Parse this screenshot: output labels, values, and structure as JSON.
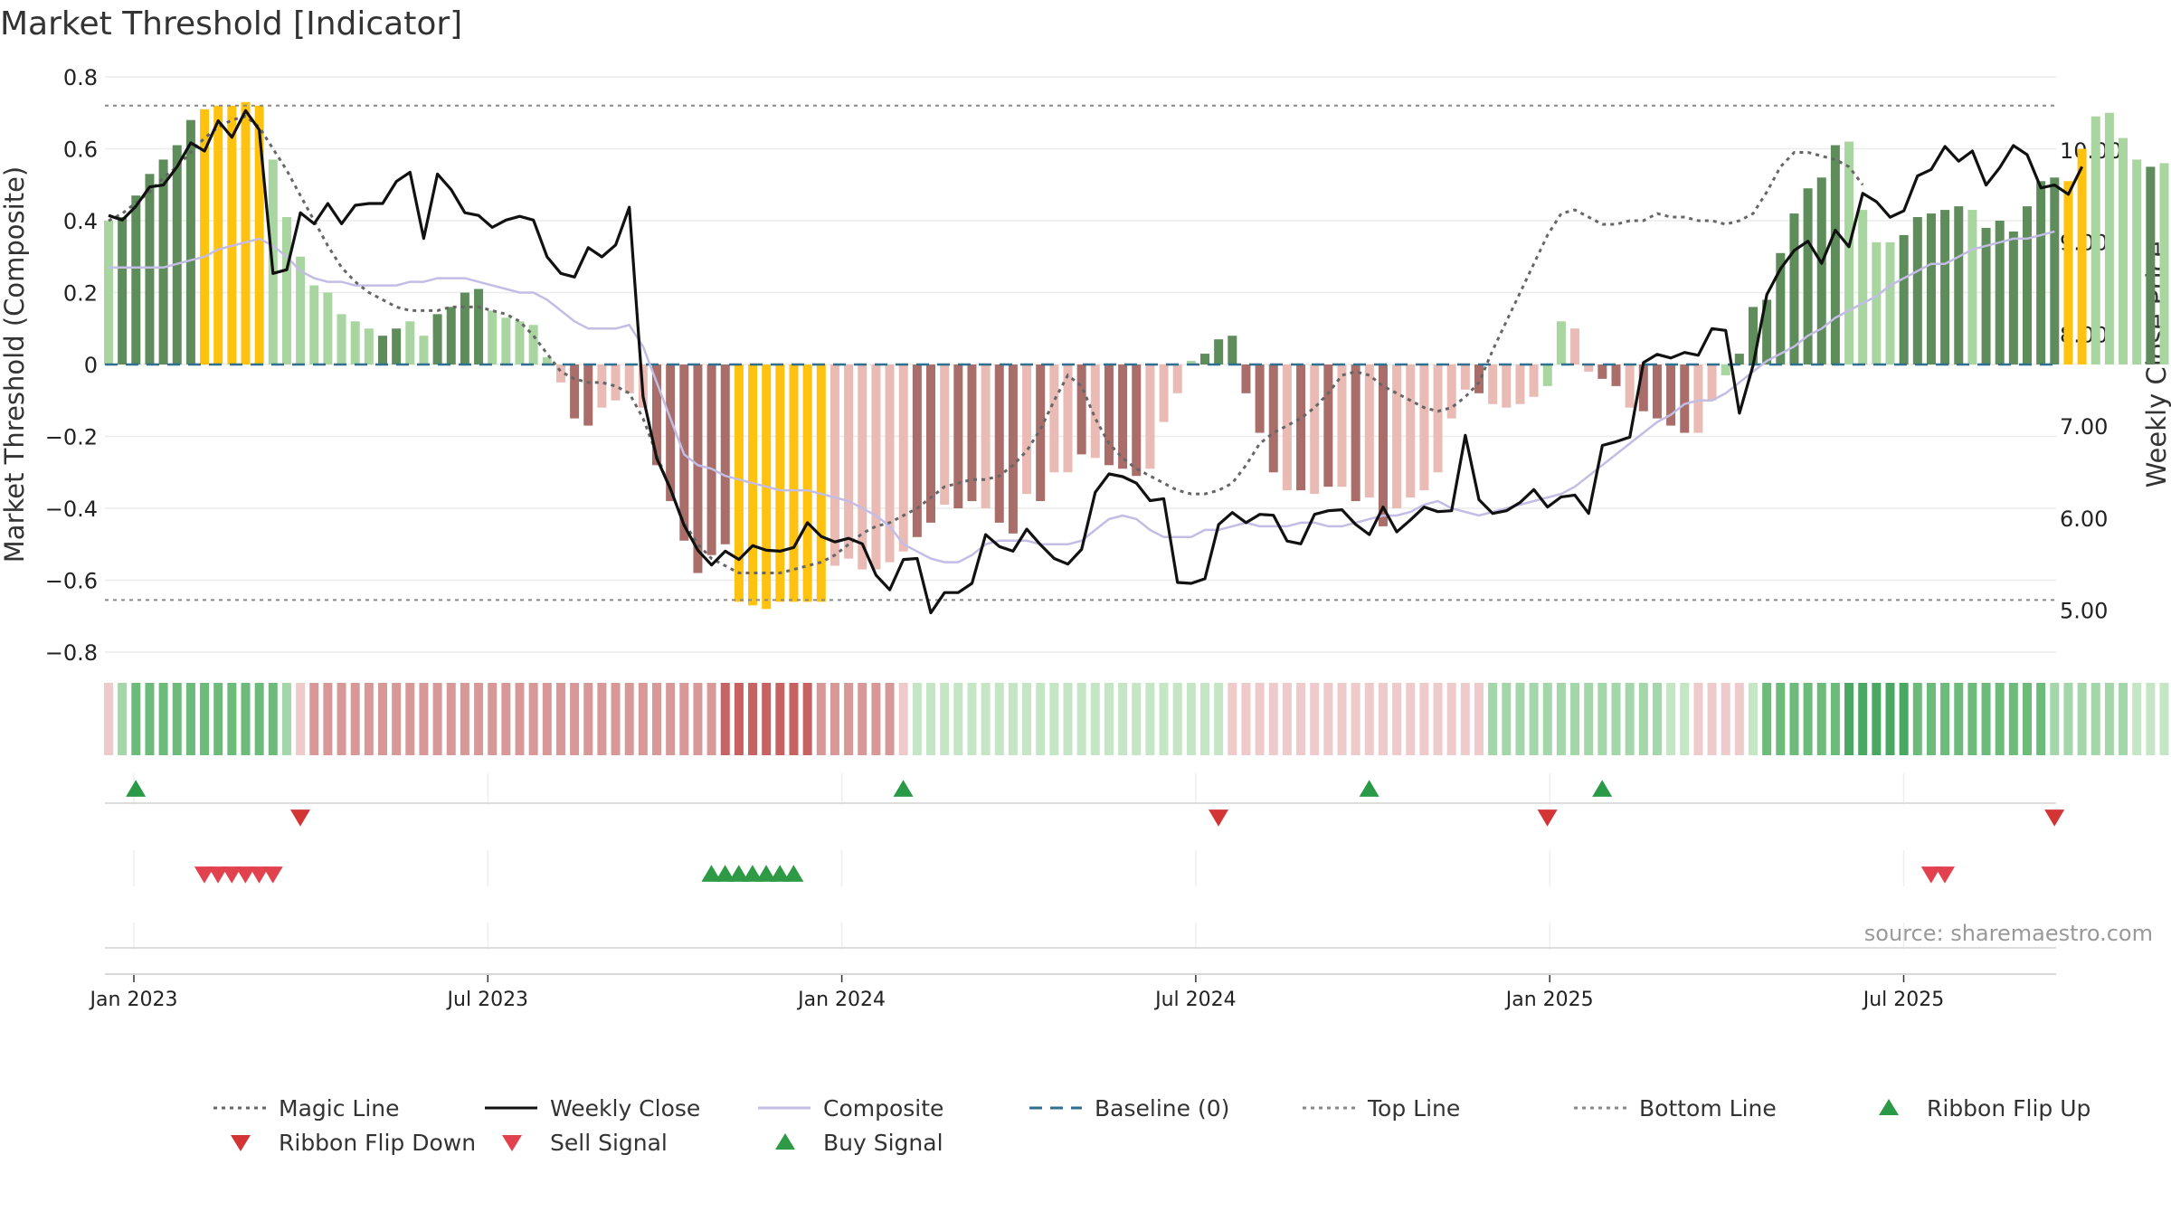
{
  "chart_data": {
    "type": "bar",
    "title": "Market Threshold [Indicator]",
    "ylabel": "Market Threshold (Composite)",
    "y2label": "Weekly Close Price",
    "ylim": [
      -0.8,
      0.8
    ],
    "y2lim": [
      4.55,
      10.7
    ],
    "yticks": [
      "0.8",
      "0.6",
      "0.4",
      "0.2",
      "0",
      "−0.2",
      "−0.4",
      "−0.6",
      "−0.8"
    ],
    "y2ticks": [
      "10.00",
      "9.00",
      "8.00",
      "7.00",
      "6.00",
      "5.00"
    ],
    "xticks": [
      {
        "label": "Jan 2023",
        "week": 3
      },
      {
        "label": "Jul 2023",
        "week": 29
      },
      {
        "label": "Jan 2024",
        "week": 55
      },
      {
        "label": "Jul 2024",
        "week": 81
      },
      {
        "label": "Jan 2025",
        "week": 107
      },
      {
        "label": "Jul 2025",
        "week": 133
      }
    ],
    "top_line": 0.72,
    "bottom_line": -0.655,
    "source": "source: sharemaestro.com",
    "colors": {
      "dark_green": "#5e8c5a",
      "light_green": "#a8d5a0",
      "gold": "#ffc20e",
      "dark_red": "#a96e6a",
      "light_red": "#eabab4",
      "black": "#111111",
      "composite": "#c3bde6",
      "magic": "#666666",
      "baseline": "#2f6f8f",
      "flip_up": "#2a9a47",
      "flip_down": "#d33535",
      "sell": "#e2414e",
      "buy": "#2f9a46"
    },
    "threshold_bars": [
      0.4,
      0.41,
      0.47,
      0.53,
      0.57,
      0.61,
      0.68,
      0.71,
      0.72,
      0.72,
      0.73,
      0.72,
      0.57,
      0.41,
      0.3,
      0.22,
      0.2,
      0.14,
      0.12,
      0.1,
      0.08,
      0.1,
      0.12,
      0.08,
      0.14,
      0.16,
      0.2,
      0.21,
      0.15,
      0.13,
      0.12,
      0.11,
      0.02,
      -0.05,
      -0.15,
      -0.17,
      -0.12,
      -0.1,
      -0.08,
      -0.12,
      -0.28,
      -0.38,
      -0.49,
      -0.58,
      -0.53,
      -0.5,
      -0.66,
      -0.67,
      -0.68,
      -0.66,
      -0.66,
      -0.66,
      -0.66,
      -0.56,
      -0.54,
      -0.57,
      -0.57,
      -0.55,
      -0.52,
      -0.48,
      -0.44,
      -0.39,
      -0.4,
      -0.38,
      -0.4,
      -0.44,
      -0.47,
      -0.36,
      -0.38,
      -0.3,
      -0.3,
      -0.25,
      -0.26,
      -0.28,
      -0.29,
      -0.31,
      -0.29,
      -0.16,
      -0.08,
      0.01,
      0.03,
      0.07,
      0.08,
      -0.08,
      -0.19,
      -0.3,
      -0.35,
      -0.35,
      -0.36,
      -0.34,
      -0.34,
      -0.38,
      -0.37,
      -0.45,
      -0.4,
      -0.37,
      -0.35,
      -0.3,
      -0.15,
      -0.07,
      -0.08,
      -0.11,
      -0.12,
      -0.11,
      -0.09,
      -0.06,
      0.12,
      0.1,
      -0.02,
      -0.04,
      -0.06,
      -0.12,
      -0.13,
      -0.15,
      -0.17,
      -0.19,
      -0.19,
      -0.1,
      -0.03,
      0.03,
      0.16,
      0.18,
      0.31,
      0.42,
      0.49,
      0.52,
      0.61,
      0.62,
      0.43,
      0.34,
      0.34,
      0.36,
      0.41,
      0.42,
      0.43,
      0.44,
      0.43,
      0.38,
      0.4,
      0.37,
      0.44,
      0.51,
      0.52,
      0.51,
      0.6,
      0.69,
      0.7,
      0.63,
      0.57,
      0.55,
      0.56,
      0.55,
      0.47,
      0.44,
      0.38,
      0.41
    ],
    "threshold_colors": [
      "lg",
      "dg",
      "dg",
      "dg",
      "dg",
      "dg",
      "dg",
      "go",
      "go",
      "go",
      "go",
      "go",
      "lg",
      "lg",
      "lg",
      "lg",
      "lg",
      "lg",
      "lg",
      "lg",
      "dg",
      "dg",
      "lg",
      "lg",
      "dg",
      "dg",
      "dg",
      "dg",
      "lg",
      "lg",
      "lg",
      "lg",
      "lg",
      "lr",
      "dr",
      "dr",
      "lr",
      "lr",
      "lr",
      "lr",
      "dr",
      "dr",
      "dr",
      "dr",
      "dr",
      "dr",
      "go",
      "go",
      "go",
      "go",
      "go",
      "go",
      "go",
      "lr",
      "lr",
      "lr",
      "lr",
      "lr",
      "lr",
      "dr",
      "dr",
      "lr",
      "dr",
      "dr",
      "lr",
      "dr",
      "dr",
      "lr",
      "dr",
      "lr",
      "lr",
      "dr",
      "lr",
      "dr",
      "dr",
      "dr",
      "lr",
      "lr",
      "lr",
      "lg",
      "dg",
      "dg",
      "dg",
      "dr",
      "dr",
      "dr",
      "lr",
      "dr",
      "lr",
      "dr",
      "lr",
      "dr",
      "lr",
      "dr",
      "lr",
      "lr",
      "lr",
      "lr",
      "lr",
      "lr",
      "dr",
      "lr",
      "lr",
      "lr",
      "lr",
      "lg",
      "lg",
      "lr",
      "lr",
      "dr",
      "dr",
      "lr",
      "dr",
      "dr",
      "dr",
      "dr",
      "lr",
      "lr",
      "lg",
      "dg",
      "dg",
      "dg",
      "dg",
      "dg",
      "dg",
      "dg",
      "dg",
      "lg",
      "lg",
      "lg",
      "lg",
      "dg",
      "dg",
      "dg",
      "dg",
      "dg",
      "lg",
      "dg",
      "dg",
      "dg",
      "dg",
      "dg",
      "dg",
      "go",
      "go",
      "lg",
      "lg",
      "lg",
      "lg",
      "dg",
      "lg",
      "lg",
      "lg",
      "dg"
    ],
    "weekly_close": [
      9.29,
      9.24,
      9.39,
      9.6,
      9.62,
      9.82,
      10.08,
      9.99,
      10.32,
      10.14,
      10.43,
      10.22,
      8.66,
      8.7,
      9.32,
      9.2,
      9.42,
      9.2,
      9.4,
      9.42,
      9.42,
      9.66,
      9.76,
      9.04,
      9.74,
      9.57,
      9.32,
      9.29,
      9.16,
      9.24,
      9.28,
      9.24,
      8.84,
      8.66,
      8.62,
      8.94,
      8.84,
      8.97,
      9.38,
      7.32,
      6.65,
      6.32,
      5.92,
      5.65,
      5.49,
      5.64,
      5.55,
      5.7,
      5.65,
      5.64,
      5.68,
      5.95,
      5.8,
      5.74,
      5.78,
      5.72,
      5.38,
      5.22,
      5.55,
      5.56,
      4.97,
      5.19,
      5.19,
      5.29,
      5.82,
      5.69,
      5.64,
      5.88,
      5.71,
      5.56,
      5.5,
      5.66,
      6.28,
      6.48,
      6.45,
      6.38,
      6.19,
      6.21,
      5.3,
      5.29,
      5.34,
      5.93,
      6.06,
      5.95,
      6.04,
      6.03,
      5.75,
      5.72,
      6.04,
      6.08,
      6.09,
      5.93,
      5.82,
      6.12,
      5.85,
      5.98,
      6.12,
      6.07,
      6.08,
      6.9,
      6.2,
      6.05,
      6.08,
      6.17,
      6.31,
      6.12,
      6.23,
      6.25,
      6.05,
      6.79,
      6.83,
      6.88,
      7.69,
      7.78,
      7.74,
      7.8,
      7.77,
      8.06,
      8.04,
      7.14,
      7.66,
      8.43,
      8.71,
      8.91,
      9.01,
      8.77,
      9.13,
      8.95,
      9.53,
      9.44,
      9.27,
      9.34,
      9.72,
      9.79,
      10.04,
      9.88,
      9.99,
      9.62,
      9.81,
      10.05,
      9.95,
      9.59,
      9.62,
      9.52,
      9.82
    ],
    "composite": [
      0.27,
      0.27,
      0.27,
      0.27,
      0.27,
      0.28,
      0.29,
      0.3,
      0.32,
      0.33,
      0.34,
      0.35,
      0.33,
      0.3,
      0.26,
      0.24,
      0.23,
      0.23,
      0.22,
      0.22,
      0.22,
      0.22,
      0.23,
      0.23,
      0.24,
      0.24,
      0.24,
      0.23,
      0.22,
      0.21,
      0.2,
      0.2,
      0.18,
      0.15,
      0.12,
      0.1,
      0.1,
      0.1,
      0.11,
      0.05,
      -0.05,
      -0.15,
      -0.25,
      -0.28,
      -0.29,
      -0.31,
      -0.32,
      -0.33,
      -0.34,
      -0.35,
      -0.35,
      -0.35,
      -0.36,
      -0.37,
      -0.38,
      -0.4,
      -0.42,
      -0.45,
      -0.5,
      -0.52,
      -0.54,
      -0.55,
      -0.55,
      -0.53,
      -0.5,
      -0.49,
      -0.49,
      -0.49,
      -0.5,
      -0.5,
      -0.5,
      -0.49,
      -0.46,
      -0.43,
      -0.42,
      -0.43,
      -0.46,
      -0.48,
      -0.48,
      -0.48,
      -0.46,
      -0.46,
      -0.45,
      -0.44,
      -0.45,
      -0.45,
      -0.45,
      -0.44,
      -0.44,
      -0.45,
      -0.45,
      -0.44,
      -0.43,
      -0.42,
      -0.42,
      -0.41,
      -0.39,
      -0.38,
      -0.4,
      -0.41,
      -0.42,
      -0.41,
      -0.4,
      -0.39,
      -0.38,
      -0.37,
      -0.36,
      -0.34,
      -0.31,
      -0.28,
      -0.25,
      -0.22,
      -0.19,
      -0.16,
      -0.14,
      -0.11,
      -0.1,
      -0.1,
      -0.08,
      -0.05,
      -0.02,
      0.01,
      0.03,
      0.05,
      0.08,
      0.1,
      0.13,
      0.15,
      0.17,
      0.19,
      0.22,
      0.24,
      0.26,
      0.28,
      0.28,
      0.3,
      0.32,
      0.33,
      0.34,
      0.35,
      0.35,
      0.36,
      0.37
    ],
    "magic_line": [
      0.4,
      0.42,
      0.45,
      0.48,
      0.52,
      0.55,
      0.59,
      0.63,
      0.66,
      0.68,
      0.69,
      0.66,
      0.6,
      0.54,
      0.47,
      0.4,
      0.33,
      0.27,
      0.23,
      0.2,
      0.18,
      0.16,
      0.15,
      0.15,
      0.15,
      0.16,
      0.16,
      0.16,
      0.15,
      0.14,
      0.12,
      0.08,
      0.03,
      -0.02,
      -0.04,
      -0.05,
      -0.05,
      -0.06,
      -0.08,
      -0.15,
      -0.25,
      -0.35,
      -0.44,
      -0.5,
      -0.54,
      -0.56,
      -0.58,
      -0.58,
      -0.58,
      -0.58,
      -0.57,
      -0.56,
      -0.55,
      -0.53,
      -0.5,
      -0.47,
      -0.45,
      -0.44,
      -0.42,
      -0.4,
      -0.37,
      -0.34,
      -0.33,
      -0.32,
      -0.32,
      -0.31,
      -0.28,
      -0.24,
      -0.18,
      -0.1,
      -0.03,
      -0.06,
      -0.15,
      -0.22,
      -0.26,
      -0.29,
      -0.31,
      -0.33,
      -0.35,
      -0.36,
      -0.36,
      -0.35,
      -0.33,
      -0.28,
      -0.22,
      -0.19,
      -0.17,
      -0.15,
      -0.12,
      -0.08,
      -0.03,
      -0.02,
      -0.03,
      -0.06,
      -0.08,
      -0.1,
      -0.12,
      -0.13,
      -0.12,
      -0.09,
      -0.05,
      0.04,
      0.12,
      0.2,
      0.28,
      0.36,
      0.42,
      0.43,
      0.41,
      0.39,
      0.39,
      0.4,
      0.4,
      0.42,
      0.41,
      0.41,
      0.4,
      0.4,
      0.39,
      0.4,
      0.42,
      0.48,
      0.55,
      0.59,
      0.59,
      0.58,
      0.57,
      0.55,
      0.5
    ],
    "ribbon": [
      "lr",
      "lg",
      "mg",
      "mg",
      "mg",
      "mg",
      "mg",
      "mg",
      "mg",
      "mg",
      "mg",
      "mg",
      "mg",
      "lg",
      "lr",
      "mr",
      "mr",
      "mr",
      "mr",
      "mr",
      "mr",
      "mr",
      "mr",
      "mr",
      "mr",
      "mr",
      "mr",
      "mr",
      "mr",
      "mr",
      "mr",
      "mr",
      "mr",
      "mr",
      "mr",
      "mr",
      "mr",
      "mr",
      "mr",
      "mr",
      "mr",
      "mr",
      "mr",
      "mr",
      "mr",
      "dr",
      "dr",
      "dr",
      "dr",
      "dr",
      "dr",
      "dr",
      "mr",
      "mr",
      "mr",
      "mr",
      "mr",
      "mr",
      "lr",
      "vlg",
      "vlg",
      "vlg",
      "vlg",
      "vlg",
      "vlg",
      "vlg",
      "vlg",
      "vlg",
      "vlg",
      "vlg",
      "vlg",
      "vlg",
      "vlg",
      "vlg",
      "vlg",
      "vlg",
      "vlg",
      "vlg",
      "vlg",
      "vlg",
      "vlg",
      "vlg",
      "lr",
      "lr",
      "lr",
      "lr",
      "lr",
      "lr",
      "lr",
      "lr",
      "lr",
      "lr",
      "lr",
      "lr",
      "lr",
      "lr",
      "lr",
      "lr",
      "lr",
      "lr",
      "lr",
      "lg",
      "lg",
      "lg",
      "lg",
      "lg",
      "lg",
      "lg",
      "lg",
      "lg",
      "lg",
      "lg",
      "lg",
      "lg",
      "vlg",
      "vlg",
      "lr",
      "lr",
      "lr",
      "lr",
      "vlg",
      "mg",
      "mg",
      "mg",
      "mg",
      "mg",
      "mg",
      "dg",
      "dg",
      "dg",
      "dg",
      "dg",
      "mg",
      "mg",
      "mg",
      "mg",
      "mg",
      "mg",
      "mg",
      "mg",
      "mg",
      "mg",
      "lg",
      "lg",
      "lg",
      "lg",
      "lg",
      "lg",
      "vlg",
      "vlg",
      "vlg",
      "vlg",
      "vlg",
      "vlg",
      "vlg",
      "lr"
    ],
    "ribbon_flip_up_weeks": [
      1,
      57,
      91,
      108
    ],
    "ribbon_flip_down_weeks": [
      13,
      80,
      104,
      141
    ],
    "sell_signal_weeks": [
      6,
      7,
      8,
      9,
      10,
      11,
      132,
      133
    ],
    "buy_signal_weeks": [
      43,
      44,
      45,
      46,
      47,
      48,
      49
    ],
    "legend": [
      {
        "label": "Magic Line",
        "type": "dotted",
        "color": "#666666"
      },
      {
        "label": "Weekly Close",
        "type": "line",
        "color": "#111111"
      },
      {
        "label": "Composite",
        "type": "line",
        "color": "#c3bde6"
      },
      {
        "label": "Baseline (0)",
        "type": "dashed",
        "color": "#2f6f8f"
      },
      {
        "label": "Top Line",
        "type": "dotted",
        "color": "#888888"
      },
      {
        "label": "Bottom Line",
        "type": "dotted",
        "color": "#888888"
      },
      {
        "label": "Ribbon Flip Up",
        "type": "tri-up",
        "color": "#2a9a47"
      },
      {
        "label": "Ribbon Flip Down",
        "type": "tri-down",
        "color": "#d33535"
      },
      {
        "label": "Sell Signal",
        "type": "tri-down",
        "color": "#e2414e"
      },
      {
        "label": "Buy Signal",
        "type": "tri-up",
        "color": "#2f9a46"
      }
    ]
  }
}
